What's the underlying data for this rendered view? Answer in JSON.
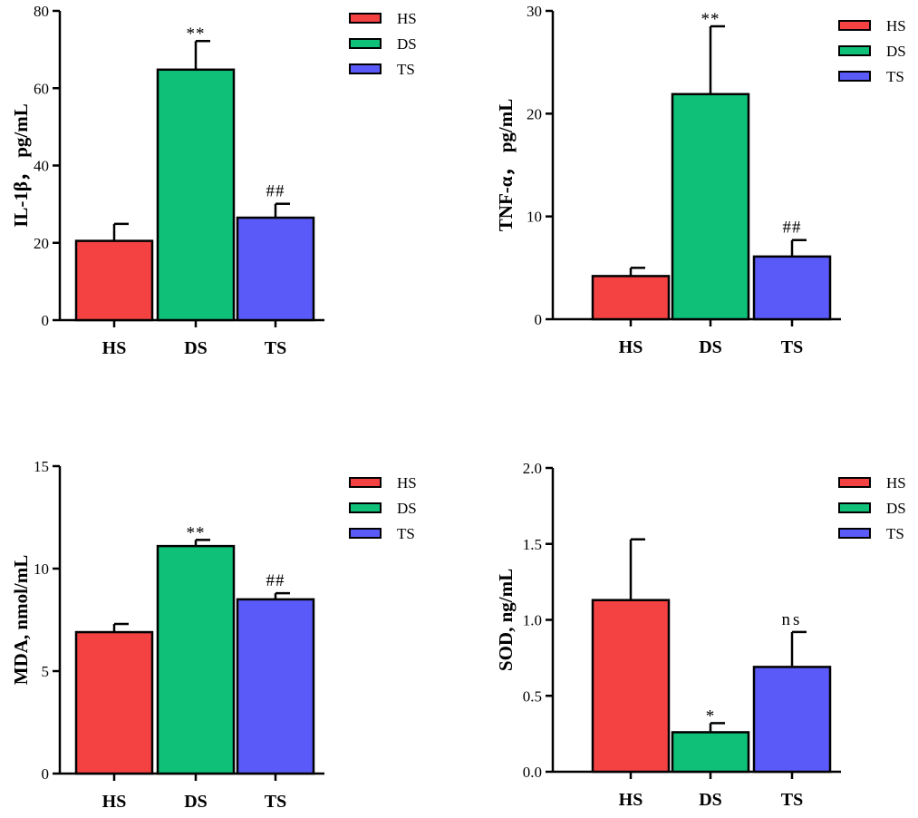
{
  "colors": {
    "HS": "#f44242",
    "DS": "#0fc078",
    "TS": "#5a5af8"
  },
  "chart_data": [
    {
      "type": "bar",
      "ylabel": "IL-1β，  pg/mL",
      "ylim": [
        0,
        80
      ],
      "yticks": [
        0,
        20,
        40,
        60,
        80
      ],
      "tick_labels": [
        "0",
        "20",
        "40",
        "60",
        "80"
      ],
      "categories": [
        "HS",
        "DS",
        "TS"
      ],
      "values": [
        20.5,
        64.8,
        26.5
      ],
      "errors": [
        4.4,
        7.4,
        3.6
      ],
      "annotations": [
        "",
        "**",
        "##"
      ],
      "legend": [
        "HS",
        "DS",
        "TS"
      ],
      "legend_position": "top-right"
    },
    {
      "type": "bar",
      "ylabel": "TNF-α，  pg/mL",
      "ylim": [
        0,
        30
      ],
      "yticks": [
        0,
        10,
        20,
        30
      ],
      "tick_labels": [
        "0",
        "10",
        "20",
        "30"
      ],
      "categories": [
        "HS",
        "DS",
        "TS"
      ],
      "values": [
        4.2,
        21.9,
        6.1
      ],
      "errors": [
        0.8,
        6.6,
        1.6
      ],
      "annotations": [
        "",
        "**",
        "##"
      ],
      "legend": [
        "HS",
        "DS",
        "TS"
      ],
      "legend_position": "top-right"
    },
    {
      "type": "bar",
      "ylabel": "MDA, nmol/mL",
      "ylim": [
        0,
        15
      ],
      "yticks": [
        0,
        5,
        10,
        15
      ],
      "tick_labels": [
        "0",
        "5",
        "10",
        "15"
      ],
      "categories": [
        "HS",
        "DS",
        "TS"
      ],
      "values": [
        6.9,
        11.1,
        8.5
      ],
      "errors": [
        0.4,
        0.3,
        0.3
      ],
      "annotations": [
        "",
        "**",
        "##"
      ],
      "legend": [
        "HS",
        "DS",
        "TS"
      ],
      "legend_position": "top-right"
    },
    {
      "type": "bar",
      "ylabel": "SOD, ng/mL",
      "ylim": [
        0,
        2
      ],
      "yticks": [
        0,
        0.5,
        1,
        1.5,
        2
      ],
      "tick_labels": [
        "0.0",
        "0.5",
        "1.0",
        "1.5",
        "2.0"
      ],
      "categories": [
        "HS",
        "DS",
        "TS"
      ],
      "values": [
        1.13,
        0.26,
        0.69
      ],
      "errors": [
        0.4,
        0.06,
        0.23
      ],
      "annotations": [
        "",
        "*",
        "ns"
      ],
      "legend": [
        "HS",
        "DS",
        "TS"
      ],
      "legend_position": "top-right"
    }
  ]
}
